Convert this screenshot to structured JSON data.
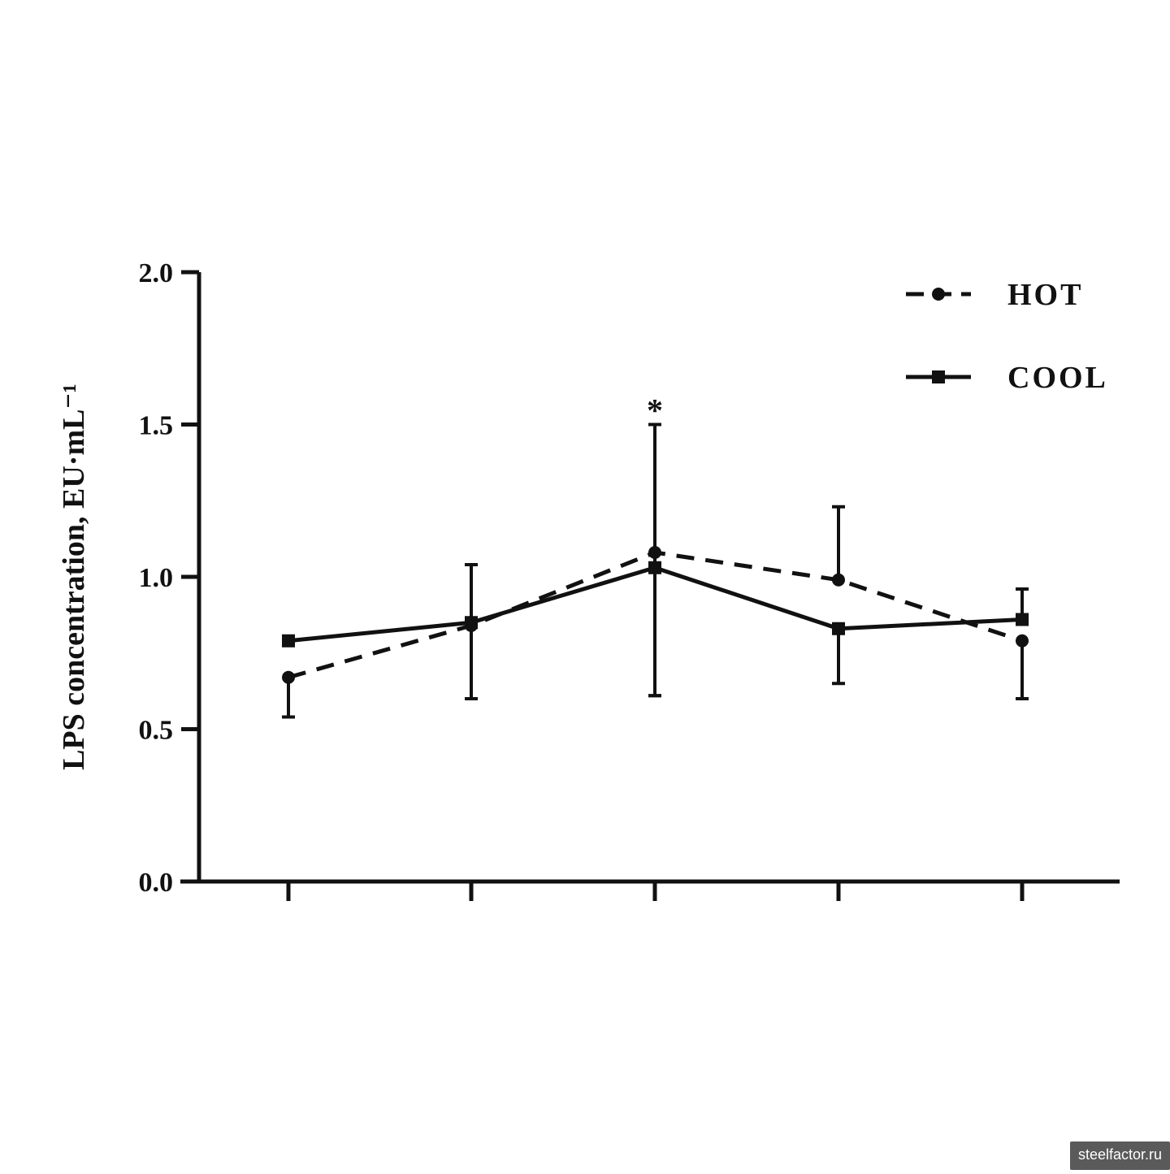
{
  "chart_data": {
    "type": "line",
    "title": "",
    "xlabel": "",
    "ylabel": "LPS concentration, EU·mL⁻¹",
    "ylim": [
      0,
      2.0
    ],
    "yticks": [
      "0.0",
      "0.5",
      "1.0",
      "1.5",
      "2.0"
    ],
    "x": [
      1,
      2,
      3,
      4,
      5
    ],
    "grid": false,
    "legend": "top-right",
    "series": [
      {
        "name": "HOT",
        "style": "dashed",
        "marker": "circle",
        "color": "#111111",
        "values": [
          0.67,
          0.84,
          1.08,
          0.99,
          0.79
        ],
        "err_low": [
          0.54,
          0.6,
          0.61,
          0.99,
          0.6
        ],
        "err_high": [
          0.67,
          0.84,
          1.5,
          1.23,
          0.79
        ]
      },
      {
        "name": "COOL",
        "style": "solid",
        "marker": "square",
        "color": "#111111",
        "values": [
          0.79,
          0.85,
          1.03,
          0.83,
          0.86
        ],
        "err_low": [
          0.79,
          0.6,
          0.61,
          0.65,
          0.86
        ],
        "err_high": [
          0.79,
          1.04,
          1.03,
          0.83,
          0.96
        ]
      }
    ],
    "annotations": [
      {
        "text": "*",
        "x": 3,
        "y": 1.58
      }
    ]
  },
  "watermark": "steelfactor.ru"
}
